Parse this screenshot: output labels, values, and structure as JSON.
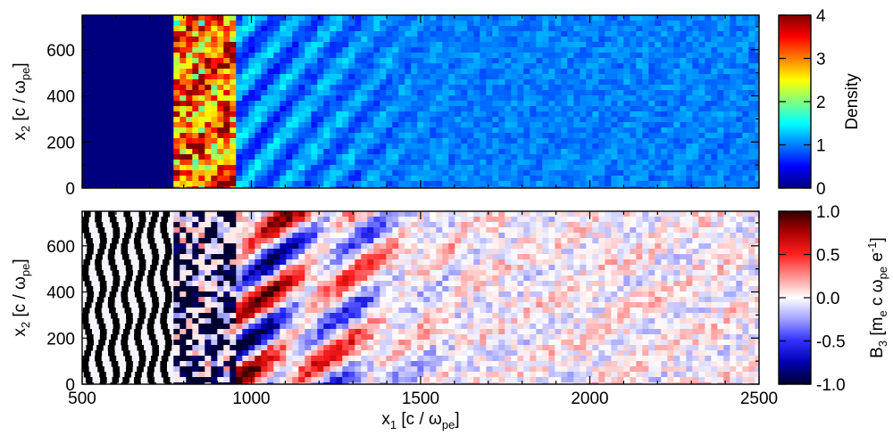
{
  "chart_data": [
    {
      "type": "heatmap",
      "quantity": "Density",
      "colormap": "jet",
      "xlim": [
        500,
        2500
      ],
      "ylim": [
        0,
        750
      ],
      "xticks": [
        500,
        1000,
        1500,
        2000,
        2500
      ],
      "yticks": [
        0,
        200,
        400,
        600
      ],
      "xlabel": "",
      "ylabel": {
        "main": "x",
        "sub": "2",
        "unit": " [c / ω",
        "unit_sub": "pe",
        "close": "]"
      },
      "colorbar": {
        "label": "Density",
        "range": [
          0,
          4
        ],
        "ticks": [
          0,
          1,
          2,
          3,
          4
        ],
        "stops": [
          "#00007f",
          "#0000ff",
          "#007fff",
          "#00ffff",
          "#7fff7f",
          "#ffff00",
          "#ff7f00",
          "#ff0000",
          "#7f0000"
        ]
      },
      "features": {
        "vacuum_region_x": [
          500,
          770
        ],
        "vacuum_density": 0.0,
        "shock_front_x": 770,
        "dense_region_x": [
          770,
          950
        ],
        "dense_region_density": 3.2,
        "upstream_density": 1.0,
        "upstream_x": [
          950,
          2500
        ]
      }
    },
    {
      "type": "heatmap",
      "quantity": "B3",
      "colormap": "diverging blue-white-red",
      "xlim": [
        500,
        2500
      ],
      "ylim": [
        0,
        750
      ],
      "xticks": [
        500,
        1000,
        1500,
        2000,
        2500
      ],
      "yticks": [
        0,
        200,
        400,
        600
      ],
      "xlabel": {
        "main": "x",
        "sub": "1",
        "unit": " [c / ω",
        "unit_sub": "pe",
        "close": "]"
      },
      "ylabel": {
        "main": "x",
        "sub": "2",
        "unit": " [c / ω",
        "unit_sub": "pe",
        "close": "]"
      },
      "colorbar": {
        "label": {
          "main": "B",
          "sub": "3",
          "unit": " [m",
          "unit_sub1": "e",
          "mid": " c ω",
          "unit_sub2": "pe",
          "e": " e",
          "sup": "-1",
          "close": "]"
        },
        "range": [
          -1.0,
          1.0
        ],
        "ticks": [
          -1.0,
          -0.5,
          0.0,
          0.5,
          1.0
        ],
        "tick_labels": [
          "-1.0",
          "-0.5",
          "0.0",
          "0.5",
          "1.0"
        ],
        "stops": [
          "#000030",
          "#0000b0",
          "#3030ff",
          "#a0a0ff",
          "#ffffff",
          "#ff9090",
          "#ff2020",
          "#b00000",
          "#300000"
        ]
      },
      "features": {
        "stripe_region_x": [
          500,
          770
        ],
        "stripe_count": 7,
        "turbulent_region_x": [
          770,
          950
        ],
        "filament_region_x": [
          950,
          1600
        ],
        "noise_region_x": [
          1600,
          2500
        ]
      }
    }
  ]
}
